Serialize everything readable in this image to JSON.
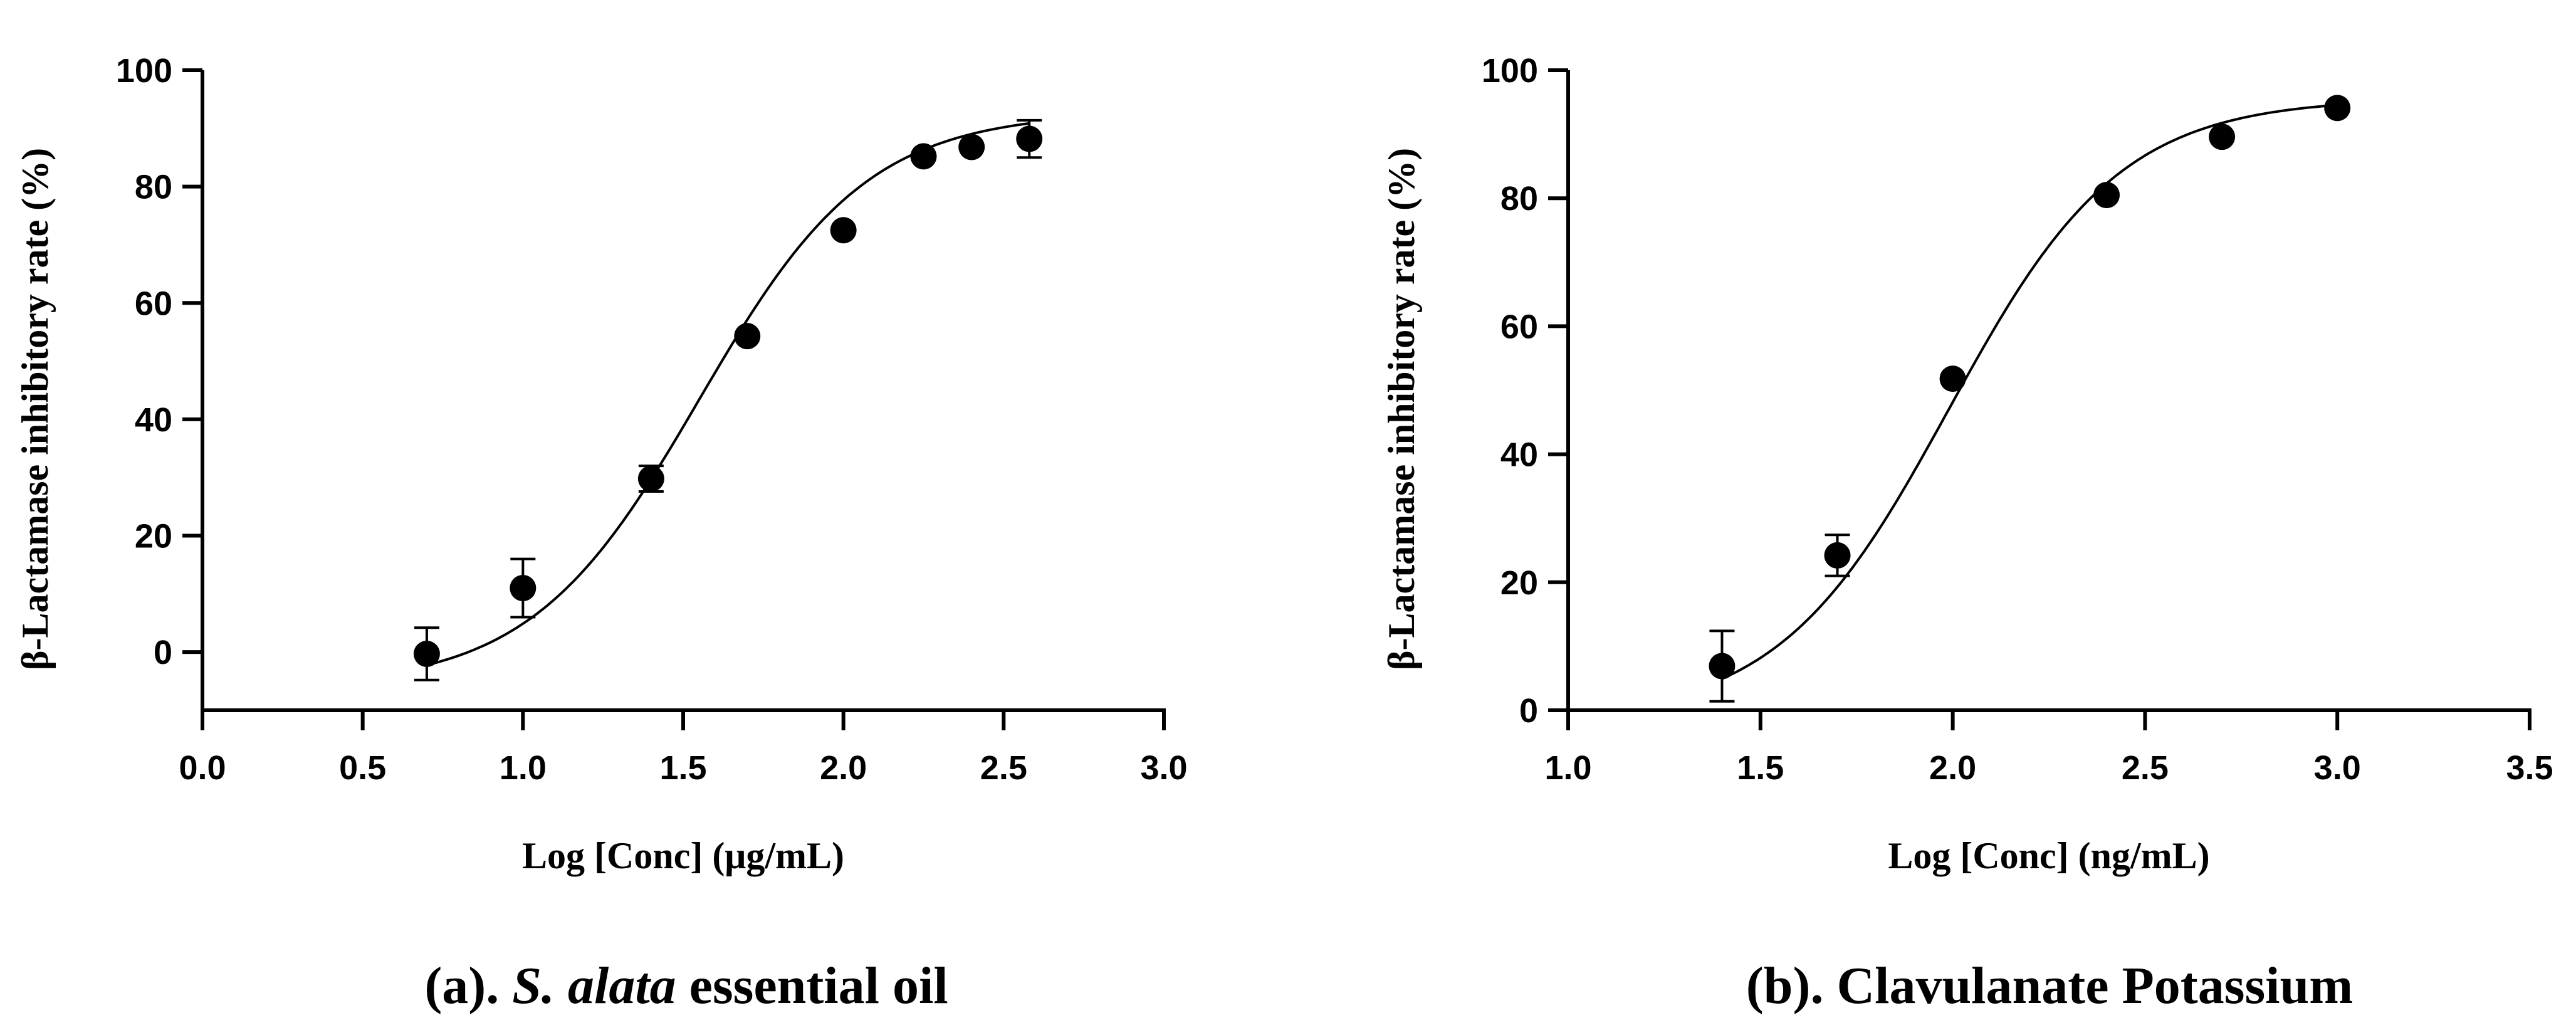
{
  "chart_data": [
    {
      "type": "scatter",
      "fit": "sigmoidal dose-response curve",
      "caption_prefix": "(a). ",
      "caption_italic": "S. alata",
      "caption_suffix": " essential oil",
      "xlabel": "Log [Conc] (μg/mL)",
      "ylabel": "β-Lactamase inhibitory rate (%)",
      "xlim": [
        0.0,
        3.0
      ],
      "ylim": [
        -10,
        100
      ],
      "xticks": [
        0.0,
        0.5,
        1.0,
        1.5,
        2.0,
        2.5,
        3.0
      ],
      "xtick_labels": [
        "0.0",
        "0.5",
        "1.0",
        "1.5",
        "2.0",
        "2.5",
        "3.0"
      ],
      "yticks": [
        0,
        20,
        40,
        60,
        80,
        100
      ],
      "ytick_labels": [
        "0",
        "20",
        "40",
        "60",
        "80",
        "100"
      ],
      "x": [
        0.7,
        1.0,
        1.4,
        1.7,
        2.0,
        2.25,
        2.4,
        2.58
      ],
      "y": [
        -0.3,
        11.0,
        29.8,
        54.3,
        72.5,
        85.2,
        86.8,
        88.2
      ],
      "err": [
        4.5,
        5.0,
        2.2,
        0,
        0,
        0,
        0,
        3.2
      ],
      "curve": {
        "bottom": -6.0,
        "top": 92.8,
        "logEC50": 1.55,
        "hill": 1.65,
        "x_start": 0.7,
        "x_end": 2.58
      }
    },
    {
      "type": "scatter",
      "fit": "sigmoidal dose-response curve",
      "caption_prefix": "(b). ",
      "caption_italic": "",
      "caption_suffix": "Clavulanate Potassium",
      "xlabel": "Log [Conc] (ng/mL)",
      "ylabel": "β-Lactamase inhibitory rate (%)",
      "xlim": [
        1.0,
        3.5
      ],
      "ylim": [
        0,
        100
      ],
      "xticks": [
        1.0,
        1.5,
        2.0,
        2.5,
        3.0,
        3.5
      ],
      "xtick_labels": [
        "1.0",
        "1.5",
        "2.0",
        "2.5",
        "3.0",
        "3.5"
      ],
      "yticks": [
        0,
        20,
        40,
        60,
        80,
        100
      ],
      "ytick_labels": [
        "0",
        "20",
        "40",
        "60",
        "80",
        "100"
      ],
      "x": [
        1.4,
        1.7,
        2.0,
        2.4,
        2.7,
        3.0
      ],
      "y": [
        6.9,
        24.2,
        51.8,
        80.5,
        89.6,
        94.1
      ],
      "err": [
        5.5,
        3.2,
        0,
        0,
        0,
        0
      ],
      "curve": {
        "bottom": -1.5,
        "top": 95.6,
        "logEC50": 1.99,
        "hill": 1.95,
        "x_start": 1.4,
        "x_end": 3.0
      }
    }
  ]
}
